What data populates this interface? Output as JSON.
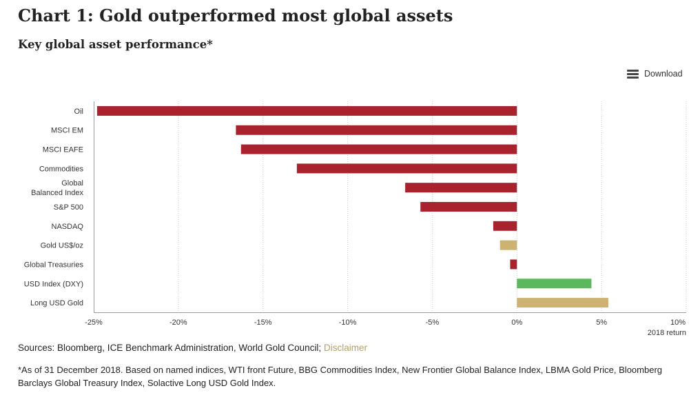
{
  "header": {
    "title": "Chart 1: Gold outperformed most global assets",
    "subtitle": "Key global asset performance*"
  },
  "toolbar": {
    "download_label": "Download",
    "download_icon": "hamburger-menu-icon"
  },
  "colors": {
    "negative": "#a8232e",
    "gold": "#cdb272",
    "usd": "#5cb85c",
    "grid": "#cccccc"
  },
  "chart_data": {
    "type": "bar",
    "orientation": "horizontal",
    "xlabel": "2018 return",
    "xlim": [
      -25,
      10
    ],
    "xticks": [
      -25,
      -20,
      -15,
      -10,
      -5,
      0,
      5,
      10
    ],
    "xtick_labels": [
      "-25%",
      "-20%",
      "-15%",
      "-10%",
      "-5%",
      "0%",
      "5%",
      "10%"
    ],
    "grid": true,
    "categories": [
      "Oil",
      "MSCI EM",
      "MSCI EAFE",
      "Commodities",
      "Global\nBalanced Index",
      "S&P 500",
      "NASDAQ",
      "Gold US$/oz",
      "Global Treasuries",
      "USD Index (DXY)",
      "Long USD Gold"
    ],
    "values": [
      -24.8,
      -16.6,
      -16.3,
      -13.0,
      -6.6,
      -5.7,
      -1.4,
      -1.0,
      -0.4,
      4.4,
      5.4
    ],
    "bar_colors": [
      "negative",
      "negative",
      "negative",
      "negative",
      "negative",
      "negative",
      "negative",
      "gold",
      "negative",
      "usd",
      "gold"
    ]
  },
  "footer": {
    "sources_text": "Sources: Bloomberg, ICE Benchmark Administration, World Gold Council; ",
    "disclaimer_label": "Disclaimer",
    "footnote": "*As of 31 December 2018. Based on named indices, WTI front Future, BBG Commodities Index, New Frontier Global Balance Index, LBMA Gold Price, Bloomberg Barclays Global Treasury Index, Solactive Long USD Gold Index."
  }
}
